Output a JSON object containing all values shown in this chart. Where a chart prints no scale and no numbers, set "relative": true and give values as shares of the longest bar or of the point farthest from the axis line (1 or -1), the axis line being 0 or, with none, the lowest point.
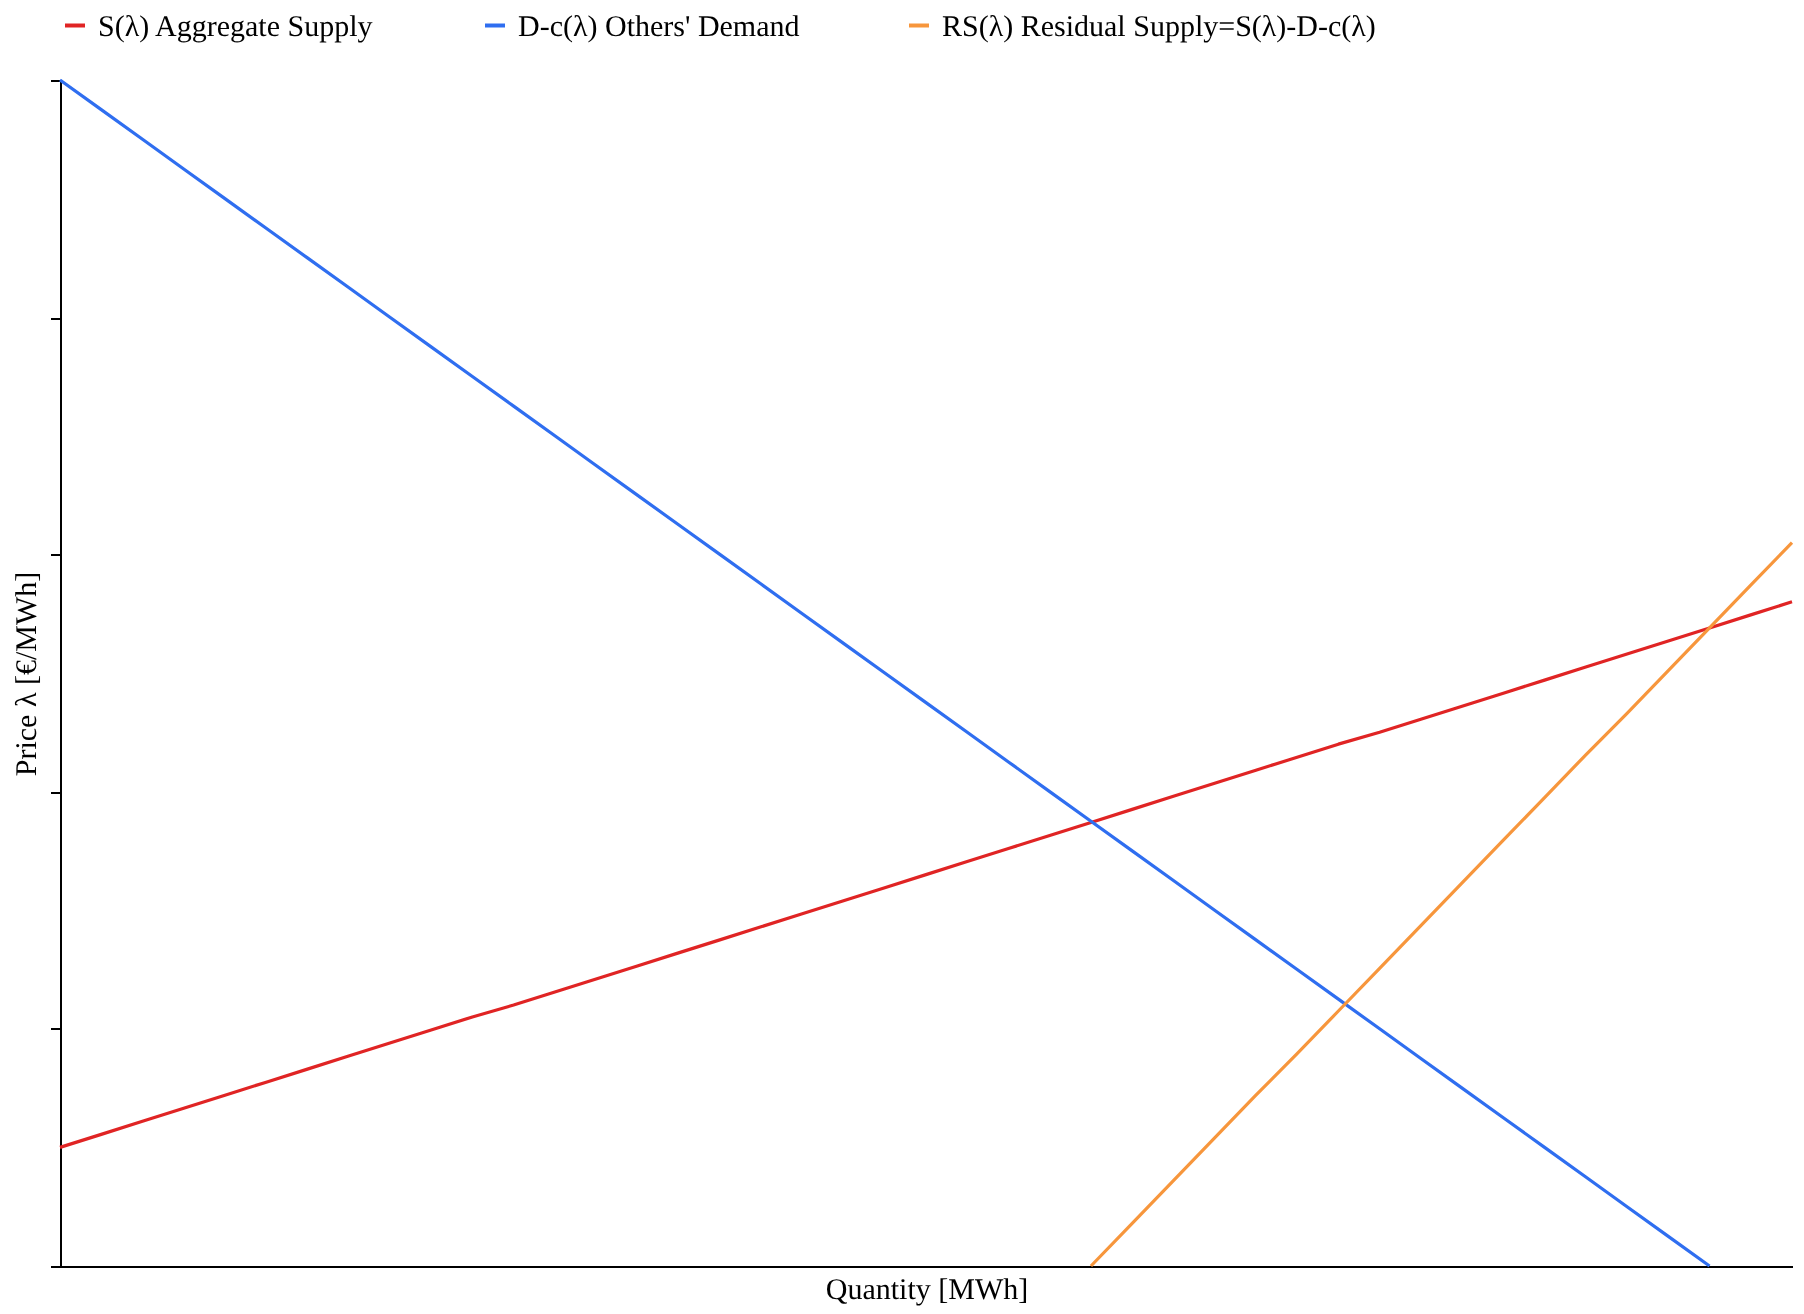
{
  "chart_data": {
    "type": "line",
    "relative": true,
    "xlabel": "Quantity [MWh]",
    "ylabel": "Price λ [€/MWh]",
    "categories": [
      null,
      null,
      null,
      null,
      null,
      null,
      null,
      null,
      null,
      null,
      null,
      null,
      null,
      null,
      null,
      null,
      null,
      null,
      null,
      null,
      null,
      null,
      null,
      null,
      null,
      null,
      null,
      null,
      null,
      null,
      null,
      null,
      null,
      null,
      null,
      null,
      null,
      null,
      null,
      null,
      null,
      null,
      null
    ],
    "grid": false,
    "legend": "top",
    "marker": "none",
    "line_style": "solid",
    "series": [
      {
        "name": "S(λ) Aggregate Supply",
        "color": "#e02424",
        "values": [
          0.1,
          0.111,
          0.122,
          0.133,
          0.144,
          0.155,
          0.166,
          0.177,
          0.188,
          0.199,
          0.21,
          0.22,
          0.231,
          0.242,
          0.253,
          0.264,
          0.275,
          0.286,
          0.297,
          0.308,
          0.319,
          0.33,
          0.341,
          0.352,
          0.363,
          0.374,
          0.385,
          0.396,
          0.407,
          0.418,
          0.429,
          0.44,
          0.45,
          0.461,
          0.472,
          0.483,
          0.494,
          0.505,
          0.516,
          0.527,
          0.538,
          0.549,
          0.56
        ]
      },
      {
        "name": "D-c(λ) Others' Demand",
        "color": "#2f6ef0",
        "values": [
          1.0,
          0.975,
          0.95,
          0.925,
          0.9,
          0.875,
          0.85,
          0.825,
          0.8,
          0.775,
          0.75,
          0.725,
          0.7,
          0.675,
          0.65,
          0.625,
          0.6,
          0.575,
          0.55,
          0.525,
          0.5,
          0.475,
          0.45,
          0.425,
          0.4,
          0.375,
          0.35,
          0.325,
          0.3,
          0.275,
          0.25,
          0.225,
          0.2,
          0.175,
          0.15,
          0.125,
          0.1,
          0.075,
          0.05,
          0.025,
          0,
          null,
          null
        ]
      },
      {
        "name": "RS(λ)  Residual Supply=S(λ)-D-c(λ)",
        "color": "#f7963c",
        "values": [
          null,
          null,
          null,
          null,
          null,
          null,
          null,
          null,
          null,
          null,
          null,
          null,
          null,
          null,
          null,
          null,
          null,
          null,
          null,
          null,
          null,
          null,
          null,
          null,
          null,
          0,
          0.036,
          0.072,
          0.108,
          0.144,
          0.179,
          0.215,
          0.251,
          0.287,
          0.323,
          0.359,
          0.395,
          0.431,
          0.466,
          0.502,
          0.538,
          0.574,
          0.61
        ]
      }
    ]
  }
}
